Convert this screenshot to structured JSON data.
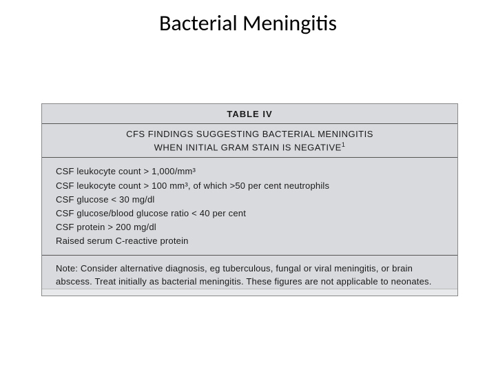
{
  "slide": {
    "title": "Bacterial Meningitis",
    "title_fontsize": 32,
    "title_color": "#000000",
    "background_color": "#ffffff"
  },
  "table": {
    "label": "TABLE IV",
    "caption_line1": "CFS FINDINGS SUGGESTING BACTERIAL MENINGITIS",
    "caption_line2": "WHEN INITIAL GRAM STAIN IS NEGATIVE",
    "caption_superscript": "1",
    "background_color": "#d8dadd",
    "border_color": "#555555",
    "text_color": "#1a1a1a",
    "label_fontsize": 13,
    "body_fontsize": 13,
    "findings": [
      "CSF leukocyte count > 1,000/mm³",
      "CSF leukocyte count > 100 mm³, of which >50 per cent neutrophils",
      "CSF glucose < 30 mg/dl",
      "CSF glucose/blood glucose ratio < 40 per cent",
      "CSF protein > 200 mg/dl",
      "Raised serum C-reactive protein"
    ],
    "note": "Note: Consider alternative diagnosis, eg tuberculous, fungal or viral meningitis, or brain abscess. Treat initially as bacterial meningitis. These figures are not applicable to neonates."
  }
}
